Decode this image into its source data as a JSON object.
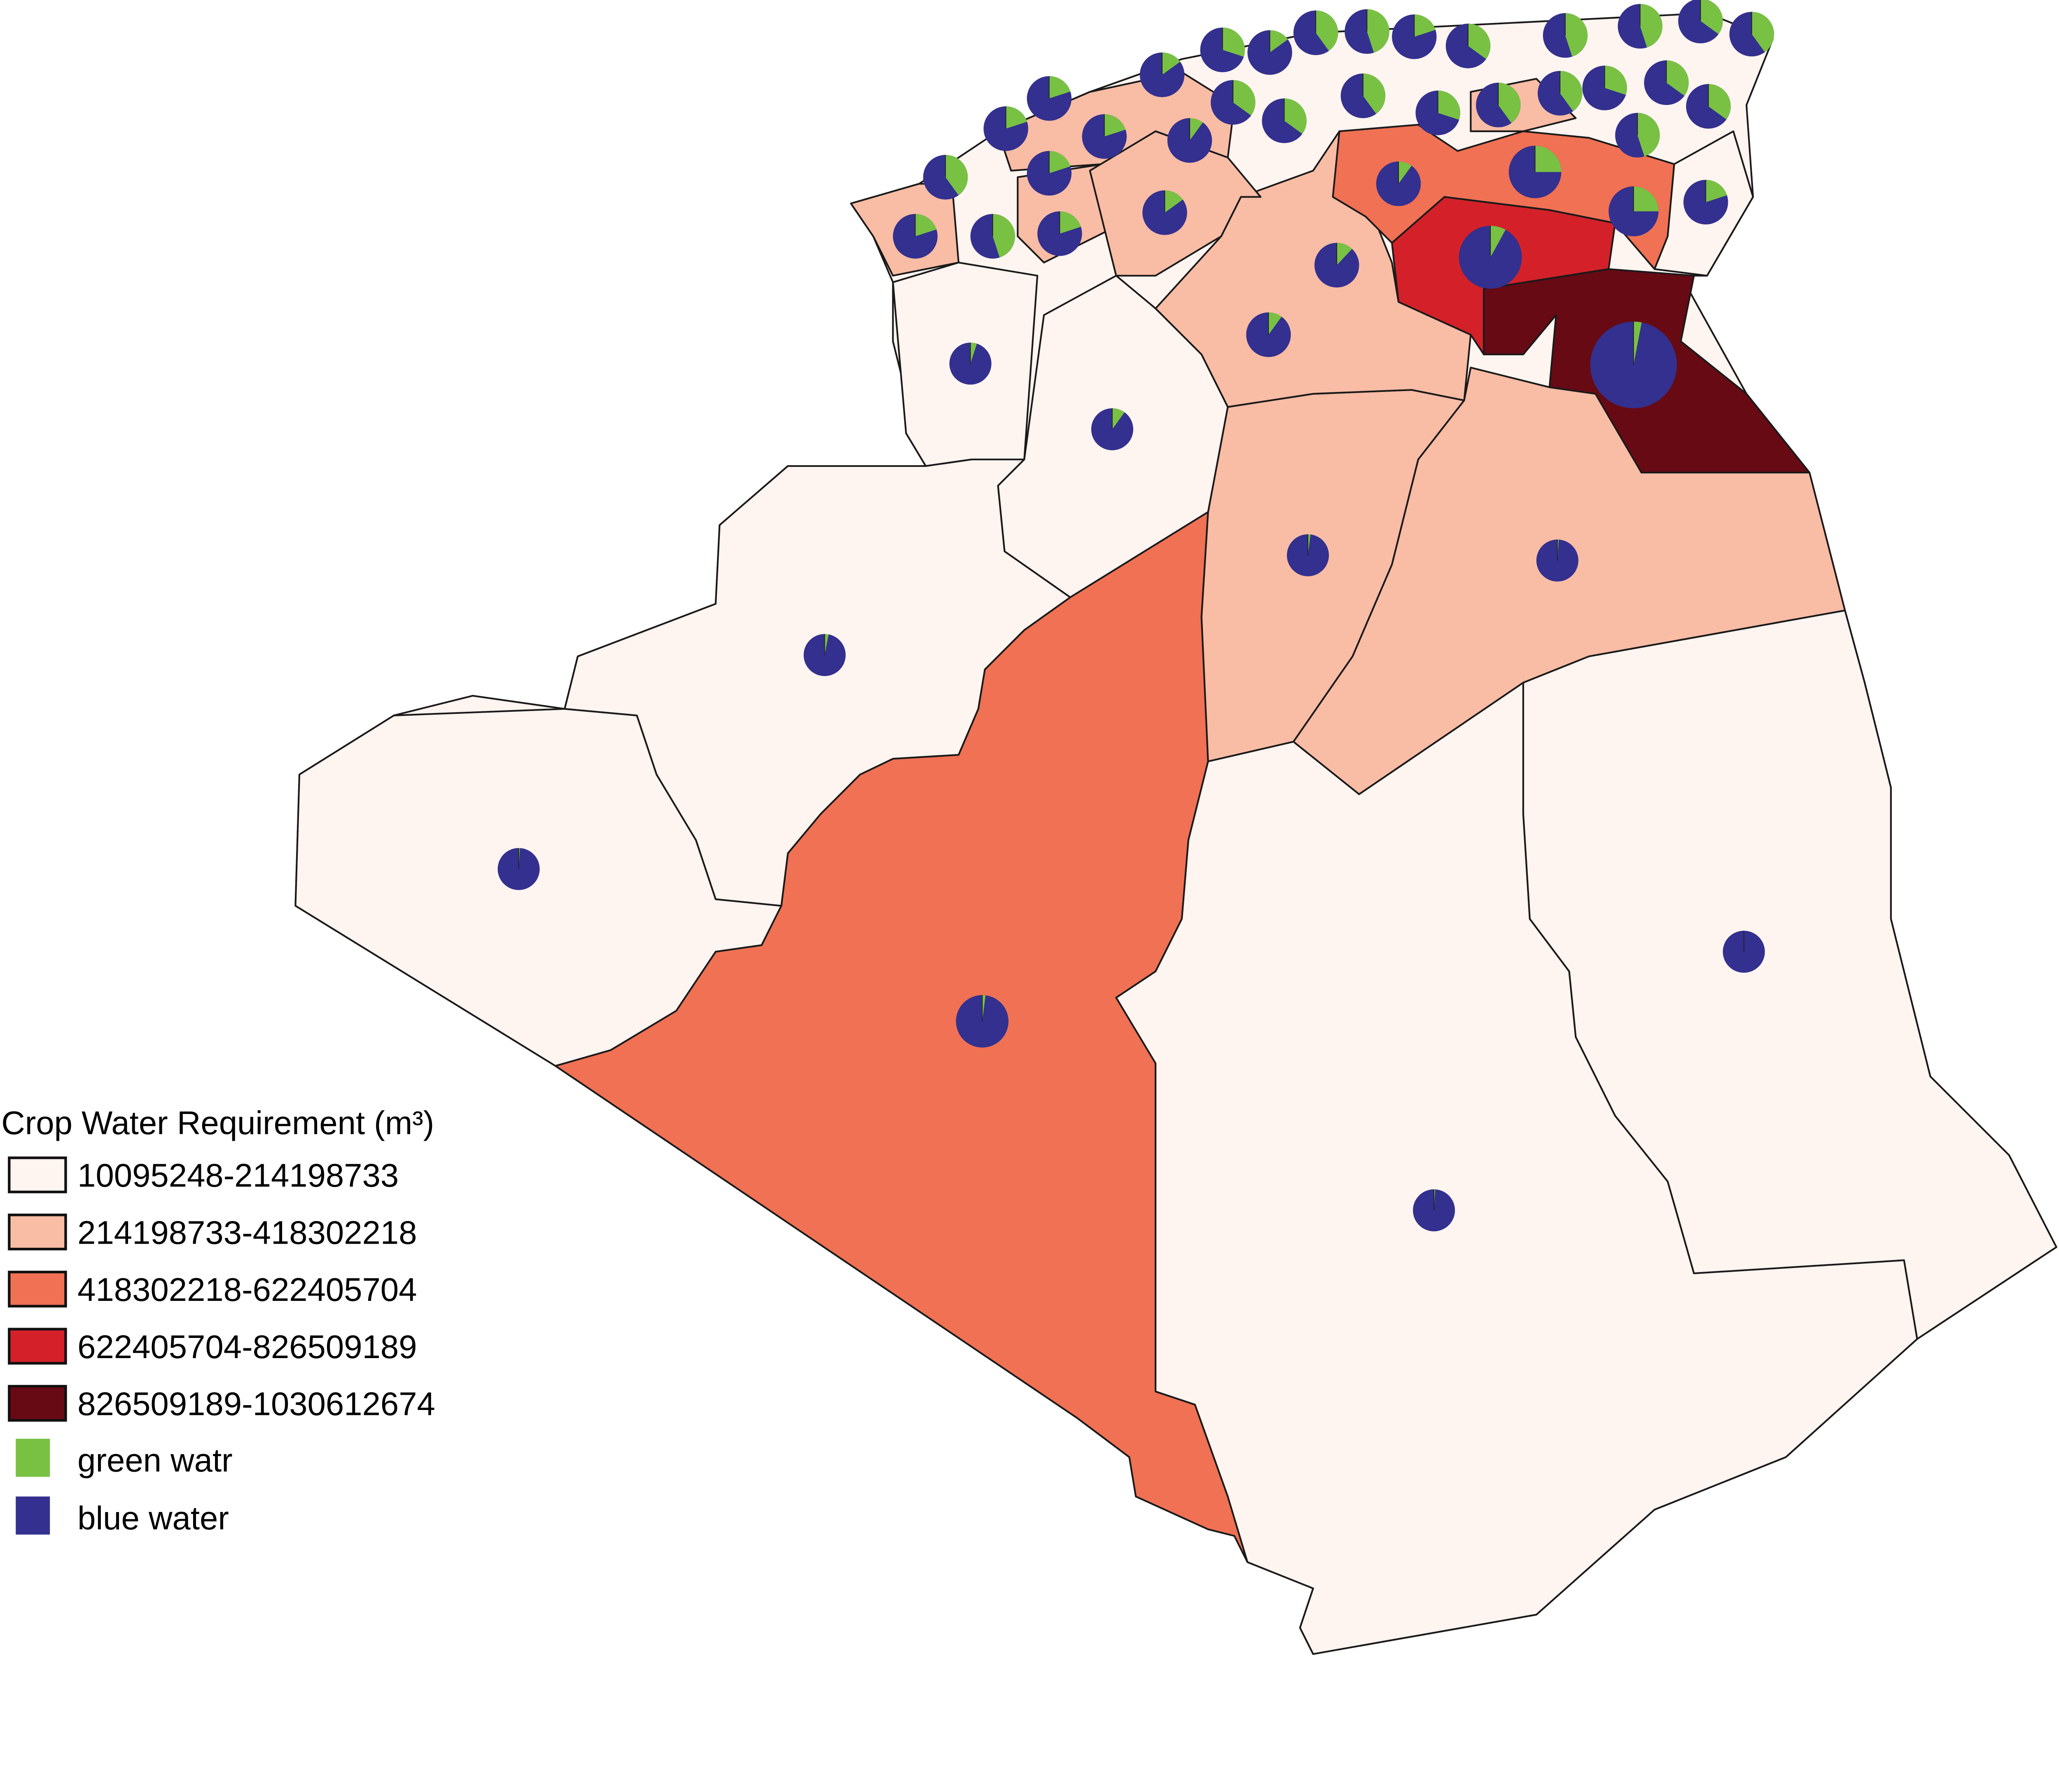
{
  "legend": {
    "title": "Crop Water Requirement (m³)",
    "classes": [
      {
        "label": "10095248-214198733",
        "color": "#fef4f0"
      },
      {
        "label": "214198733-418302218",
        "color": "#f9bca5"
      },
      {
        "label": "418302218-622405704",
        "color": "#f07153"
      },
      {
        "label": "622405704-826509189",
        "color": "#d42129"
      },
      {
        "label": "826509189-1030612674",
        "color": "#670a14"
      }
    ],
    "pie_series": [
      {
        "label": "green watr",
        "color": "#79c143"
      },
      {
        "label": "blue water",
        "color": "#33308f"
      }
    ]
  },
  "pies": [
    {
      "green_share": 0.3
    },
    {
      "green_share": 0.15
    },
    {
      "green_share": 0.4
    },
    {
      "green_share": 0.45
    },
    {
      "green_share": 0.2
    },
    {
      "green_share": 0.35
    },
    {
      "green_share": 0.45
    },
    {
      "green_share": 0.45
    },
    {
      "green_share": 0.35
    },
    {
      "green_share": 0.4
    },
    {
      "green_share": 0.15
    },
    {
      "green_share": 0.2
    },
    {
      "green_share": 0.35
    },
    {
      "green_share": 0.4
    },
    {
      "green_share": 0.3
    },
    {
      "green_share": 0.4
    },
    {
      "green_share": 0.4
    },
    {
      "green_share": 0.3
    },
    {
      "green_share": 0.35
    },
    {
      "green_share": 0.35
    },
    {
      "green_share": 0.2
    },
    {
      "green_share": 0.2
    },
    {
      "green_share": 0.1
    },
    {
      "green_share": 0.35
    },
    {
      "green_share": 0.45
    },
    {
      "green_share": 0.4
    },
    {
      "green_share": 0.2
    },
    {
      "green_share": 0.1
    },
    {
      "green_share": 0.25
    },
    {
      "green_share": 0.2
    },
    {
      "green_share": 0.25
    },
    {
      "green_share": 0.2
    },
    {
      "green_share": 0.45
    },
    {
      "green_share": 0.2
    },
    {
      "green_share": 0.15
    },
    {
      "green_share": 0.12
    },
    {
      "green_share": 0.1
    },
    {
      "green_share": 0.08
    },
    {
      "green_share": 0.03
    },
    {
      "green_share": 0.05
    },
    {
      "green_share": 0.1
    },
    {
      "green_share": 0.02
    },
    {
      "green_share": 0.01
    },
    {
      "green_share": 0.03
    },
    {
      "green_share": 0.01
    },
    {
      "green_share": 0.02
    },
    {
      "green_share": 0.0
    },
    {
      "green_share": 0.01
    }
  ]
}
